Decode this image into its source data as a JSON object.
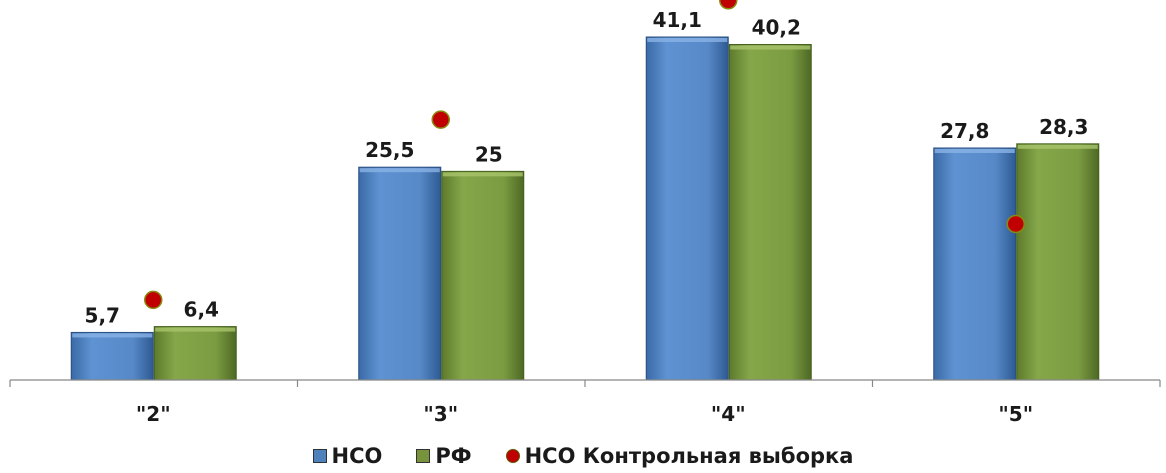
{
  "chart_data": {
    "type": "bar",
    "categories": [
      "\"2\"",
      "\"3\"",
      "\"4\"",
      "\"5\""
    ],
    "series": [
      {
        "name": "НСО",
        "values": [
          5.7,
          25.5,
          41.1,
          27.8
        ],
        "labels": [
          "5,7",
          "25,5",
          "41,1",
          "27,8"
        ],
        "color": "#4f81bd"
      },
      {
        "name": "РФ",
        "values": [
          6.4,
          25,
          40.2,
          28.3
        ],
        "labels": [
          "6,4",
          "25",
          "40,2",
          "28,3"
        ],
        "color": "#77933c"
      }
    ],
    "markers": {
      "name": "НСО Контрольная выборка",
      "values": [
        9.6,
        31.2,
        45.5,
        18.7
      ],
      "color": "#c00000"
    },
    "ylim": [
      0,
      46
    ],
    "grid": false,
    "legend": "bottom"
  }
}
